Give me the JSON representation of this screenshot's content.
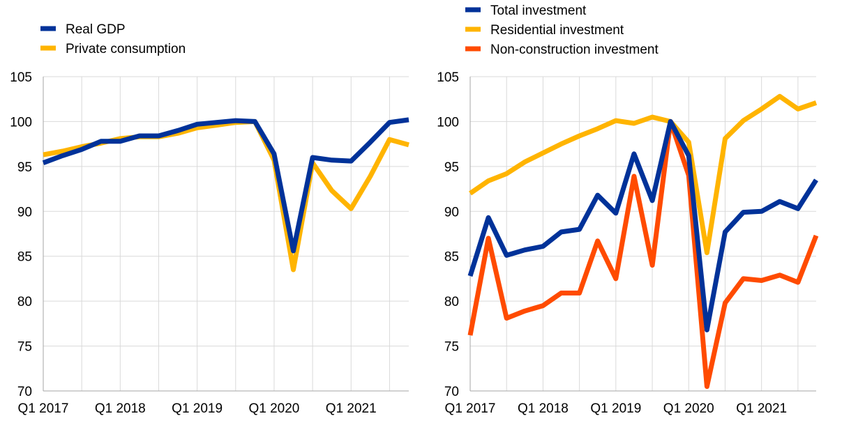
{
  "chart_data": [
    {
      "type": "line",
      "x": [
        "Q1 2017",
        "Q2 2017",
        "Q3 2017",
        "Q4 2017",
        "Q1 2018",
        "Q2 2018",
        "Q3 2018",
        "Q4 2018",
        "Q1 2019",
        "Q2 2019",
        "Q3 2019",
        "Q4 2019",
        "Q1 2020",
        "Q2 2020",
        "Q3 2020",
        "Q4 2020",
        "Q1 2021",
        "Q2 2021",
        "Q3 2021",
        "Q4 2021"
      ],
      "xtick_labels": [
        "Q1 2017",
        "Q1 2018",
        "Q1 2019",
        "Q1 2020",
        "Q1 2021"
      ],
      "ylim": [
        70,
        105
      ],
      "yticks": [
        70,
        75,
        80,
        85,
        90,
        95,
        100,
        105
      ],
      "grid": true,
      "legend_position": "top-left",
      "series": [
        {
          "name": "Real GDP",
          "color": "#003299",
          "values": [
            95.4,
            96.2,
            96.9,
            97.8,
            97.8,
            98.4,
            98.4,
            99.0,
            99.7,
            99.9,
            100.1,
            100.0,
            96.4,
            85.6,
            96.0,
            95.7,
            95.6,
            97.7,
            99.9,
            100.2
          ]
        },
        {
          "name": "Private consumption",
          "color": "#FFB400",
          "values": [
            96.3,
            96.7,
            97.2,
            97.6,
            98.1,
            98.3,
            98.3,
            98.7,
            99.3,
            99.6,
            99.9,
            100.0,
            95.7,
            83.5,
            95.4,
            92.3,
            90.3,
            93.9,
            98.0,
            97.4
          ]
        }
      ]
    },
    {
      "type": "line",
      "x": [
        "Q1 2017",
        "Q2 2017",
        "Q3 2017",
        "Q4 2017",
        "Q1 2018",
        "Q2 2018",
        "Q3 2018",
        "Q4 2018",
        "Q1 2019",
        "Q2 2019",
        "Q3 2019",
        "Q4 2019",
        "Q1 2020",
        "Q2 2020",
        "Q3 2020",
        "Q4 2020",
        "Q1 2021",
        "Q2 2021",
        "Q3 2021",
        "Q4 2021"
      ],
      "xtick_labels": [
        "Q1 2017",
        "Q1 2018",
        "Q1 2019",
        "Q1 2020",
        "Q1 2021"
      ],
      "ylim": [
        70,
        105
      ],
      "yticks": [
        70,
        75,
        80,
        85,
        90,
        95,
        100,
        105
      ],
      "grid": true,
      "legend_position": "top-left",
      "series": [
        {
          "name": "Total investment",
          "color": "#003299",
          "values": [
            82.8,
            89.3,
            85.1,
            85.7,
            86.1,
            87.7,
            88.0,
            91.8,
            89.8,
            96.4,
            91.2,
            100.0,
            96.2,
            76.8,
            87.7,
            89.9,
            90.0,
            91.1,
            90.3,
            93.5
          ]
        },
        {
          "name": "Residential investment",
          "color": "#FFB400",
          "values": [
            92.0,
            93.4,
            94.2,
            95.5,
            96.5,
            97.5,
            98.4,
            99.2,
            100.1,
            99.8,
            100.5,
            100.0,
            97.7,
            85.4,
            98.1,
            100.1,
            101.4,
            102.8,
            101.4,
            102.1
          ]
        },
        {
          "name": "Non-construction investment",
          "color": "#FF4B00",
          "values": [
            76.2,
            87.0,
            78.1,
            78.9,
            79.5,
            80.9,
            80.9,
            86.7,
            82.5,
            93.9,
            84.0,
            100.0,
            94.0,
            70.5,
            79.8,
            82.5,
            82.3,
            82.9,
            82.1,
            87.3
          ]
        }
      ]
    }
  ]
}
